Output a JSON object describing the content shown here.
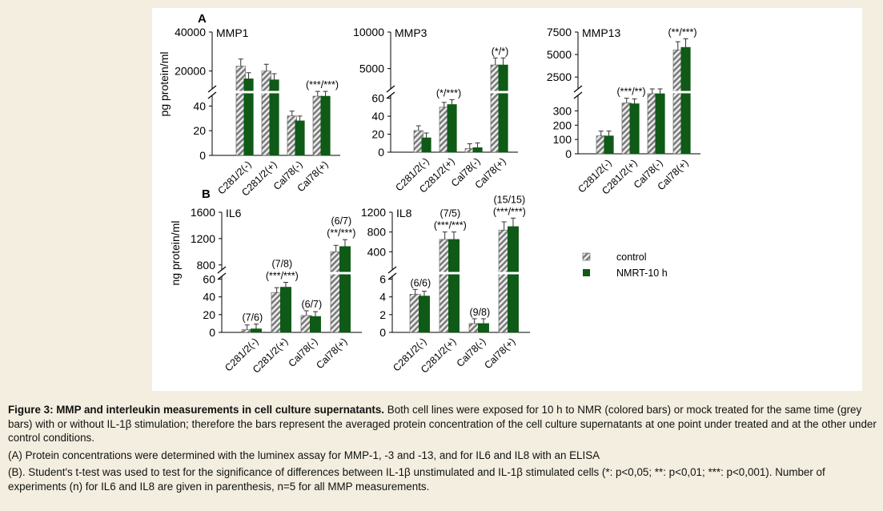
{
  "colors": {
    "background": "#f3eedf",
    "panel": "#ffffff",
    "nmrt": "#0e5a16",
    "control_stripe": "#777777",
    "control_base": "#ececec",
    "text": "#111111"
  },
  "legend": {
    "control": "control",
    "nmrt": "NMRT-10 h"
  },
  "caption": {
    "title": "Figure 3: MMP and interleukin measurements in cell culture supernatants.",
    "body": " Both cell lines were exposed for 10 h to NMR (colored bars) or mock treated for the same time (grey bars) with or without IL-1β stimulation; therefore the bars represent the averaged protein concentration of the cell culture supernatants at one point under treated and at the other under control conditions.",
    "line_a": "(A) Protein concentrations were determined with the luminex assay for MMP-1, -3 and -13, and for IL6 and IL8 with an ELISA",
    "line_b": "(B). Student's t-test was used to test for the significance of differences between IL-1β unstimulated and IL-1β stimulated cells (*: p<0,05; **: p<0,01; ***: p<0,001). Number of experiments (n) for IL6 and IL8 are given in parenthesis, n=5 for all MMP measurements."
  },
  "chart_data": [
    {
      "type": "bar",
      "panel": "A",
      "title": "MMP1",
      "ylabel": "pg protein/ml",
      "categories": [
        "C281/2(-)",
        "C281/2(+)",
        "Cal78(-)",
        "Cal78(+)"
      ],
      "series": [
        {
          "name": "control",
          "values": [
            22500,
            20000,
            32,
            48
          ]
        },
        {
          "name": "NMRT-10 h",
          "values": [
            16000,
            15500,
            28,
            48
          ]
        }
      ],
      "y_axis_broken": true,
      "lower_ylim": [
        0,
        50
      ],
      "upper_ylim": [
        10000,
        40000
      ],
      "lower_ticks": [
        0,
        20,
        40
      ],
      "upper_ticks": [
        20000,
        40000
      ],
      "annotations": [
        "",
        "",
        "",
        "(***/***)"
      ]
    },
    {
      "type": "bar",
      "panel": "A",
      "title": "MMP3",
      "categories": [
        "C281/2(-)",
        "C281/2(+)",
        "Cal78(-)",
        "Cal78(+)"
      ],
      "series": [
        {
          "name": "control",
          "values": [
            24,
            50,
            4,
            5500
          ]
        },
        {
          "name": "NMRT-10 h",
          "values": [
            16,
            53,
            5,
            5500
          ]
        }
      ],
      "y_axis_broken": true,
      "lower_ylim": [
        0,
        65
      ],
      "upper_ylim": [
        2000,
        10000
      ],
      "lower_ticks": [
        0,
        20,
        40,
        60
      ],
      "upper_ticks": [
        5000,
        10000
      ],
      "annotations": [
        "",
        "(*/***)",
        "",
        "(*/*)"
      ]
    },
    {
      "type": "bar",
      "panel": "A",
      "title": "MMP13",
      "categories": [
        "C281/2(-)",
        "C281/2(+)",
        "Cal78(-)",
        "Cal78(+)"
      ],
      "series": [
        {
          "name": "control",
          "values": [
            125,
            355,
            420,
            5500
          ]
        },
        {
          "name": "NMRT-10 h",
          "values": [
            125,
            350,
            420,
            5800
          ]
        }
      ],
      "y_axis_broken": true,
      "lower_ylim": [
        0,
        420
      ],
      "upper_ylim": [
        1000,
        7500
      ],
      "lower_ticks": [
        0,
        100,
        200,
        300
      ],
      "upper_ticks": [
        2500,
        5000,
        7500
      ],
      "annotations": [
        "",
        "(***/**)",
        "",
        "(**/***)"
      ]
    },
    {
      "type": "bar",
      "panel": "B",
      "title": "IL6",
      "ylabel": "ng protein/ml",
      "categories": [
        "C281/2(-)",
        "C281/2(+)",
        "Cal78(-)",
        "Cal78(+)"
      ],
      "series": [
        {
          "name": "control",
          "values": [
            3,
            45,
            19,
            1000
          ]
        },
        {
          "name": "NMRT-10 h",
          "values": [
            4,
            51,
            18,
            1080
          ]
        }
      ],
      "y_axis_broken": true,
      "lower_ylim": [
        0,
        65
      ],
      "upper_ylim": [
        700,
        1600
      ],
      "lower_ticks": [
        0,
        20,
        40,
        60
      ],
      "upper_ticks": [
        800,
        1200,
        1600
      ],
      "annotations": [
        "(7/6)",
        "(7/8)\n(***/***)",
        "(6/7)",
        "(6/7)\n(**/***)"
      ]
    },
    {
      "type": "bar",
      "panel": "B",
      "title": "IL8",
      "categories": [
        "C281/2(-)",
        "C281/2(+)",
        "Cal78(-)",
        "Cal78(+)"
      ],
      "series": [
        {
          "name": "control",
          "values": [
            4.3,
            650,
            1.0,
            840
          ]
        },
        {
          "name": "NMRT-10 h",
          "values": [
            4.1,
            650,
            1.0,
            910
          ]
        }
      ],
      "y_axis_broken": true,
      "lower_ylim": [
        0,
        6.5
      ],
      "upper_ylim": [
        0,
        1200
      ],
      "lower_ticks": [
        0,
        2,
        4,
        6
      ],
      "upper_ticks": [
        400,
        800,
        1200
      ],
      "annotations": [
        "(6/6)",
        "(7/5)\n(***/***)",
        "(9/8)",
        "(15/15)\n(***/***)"
      ]
    }
  ]
}
